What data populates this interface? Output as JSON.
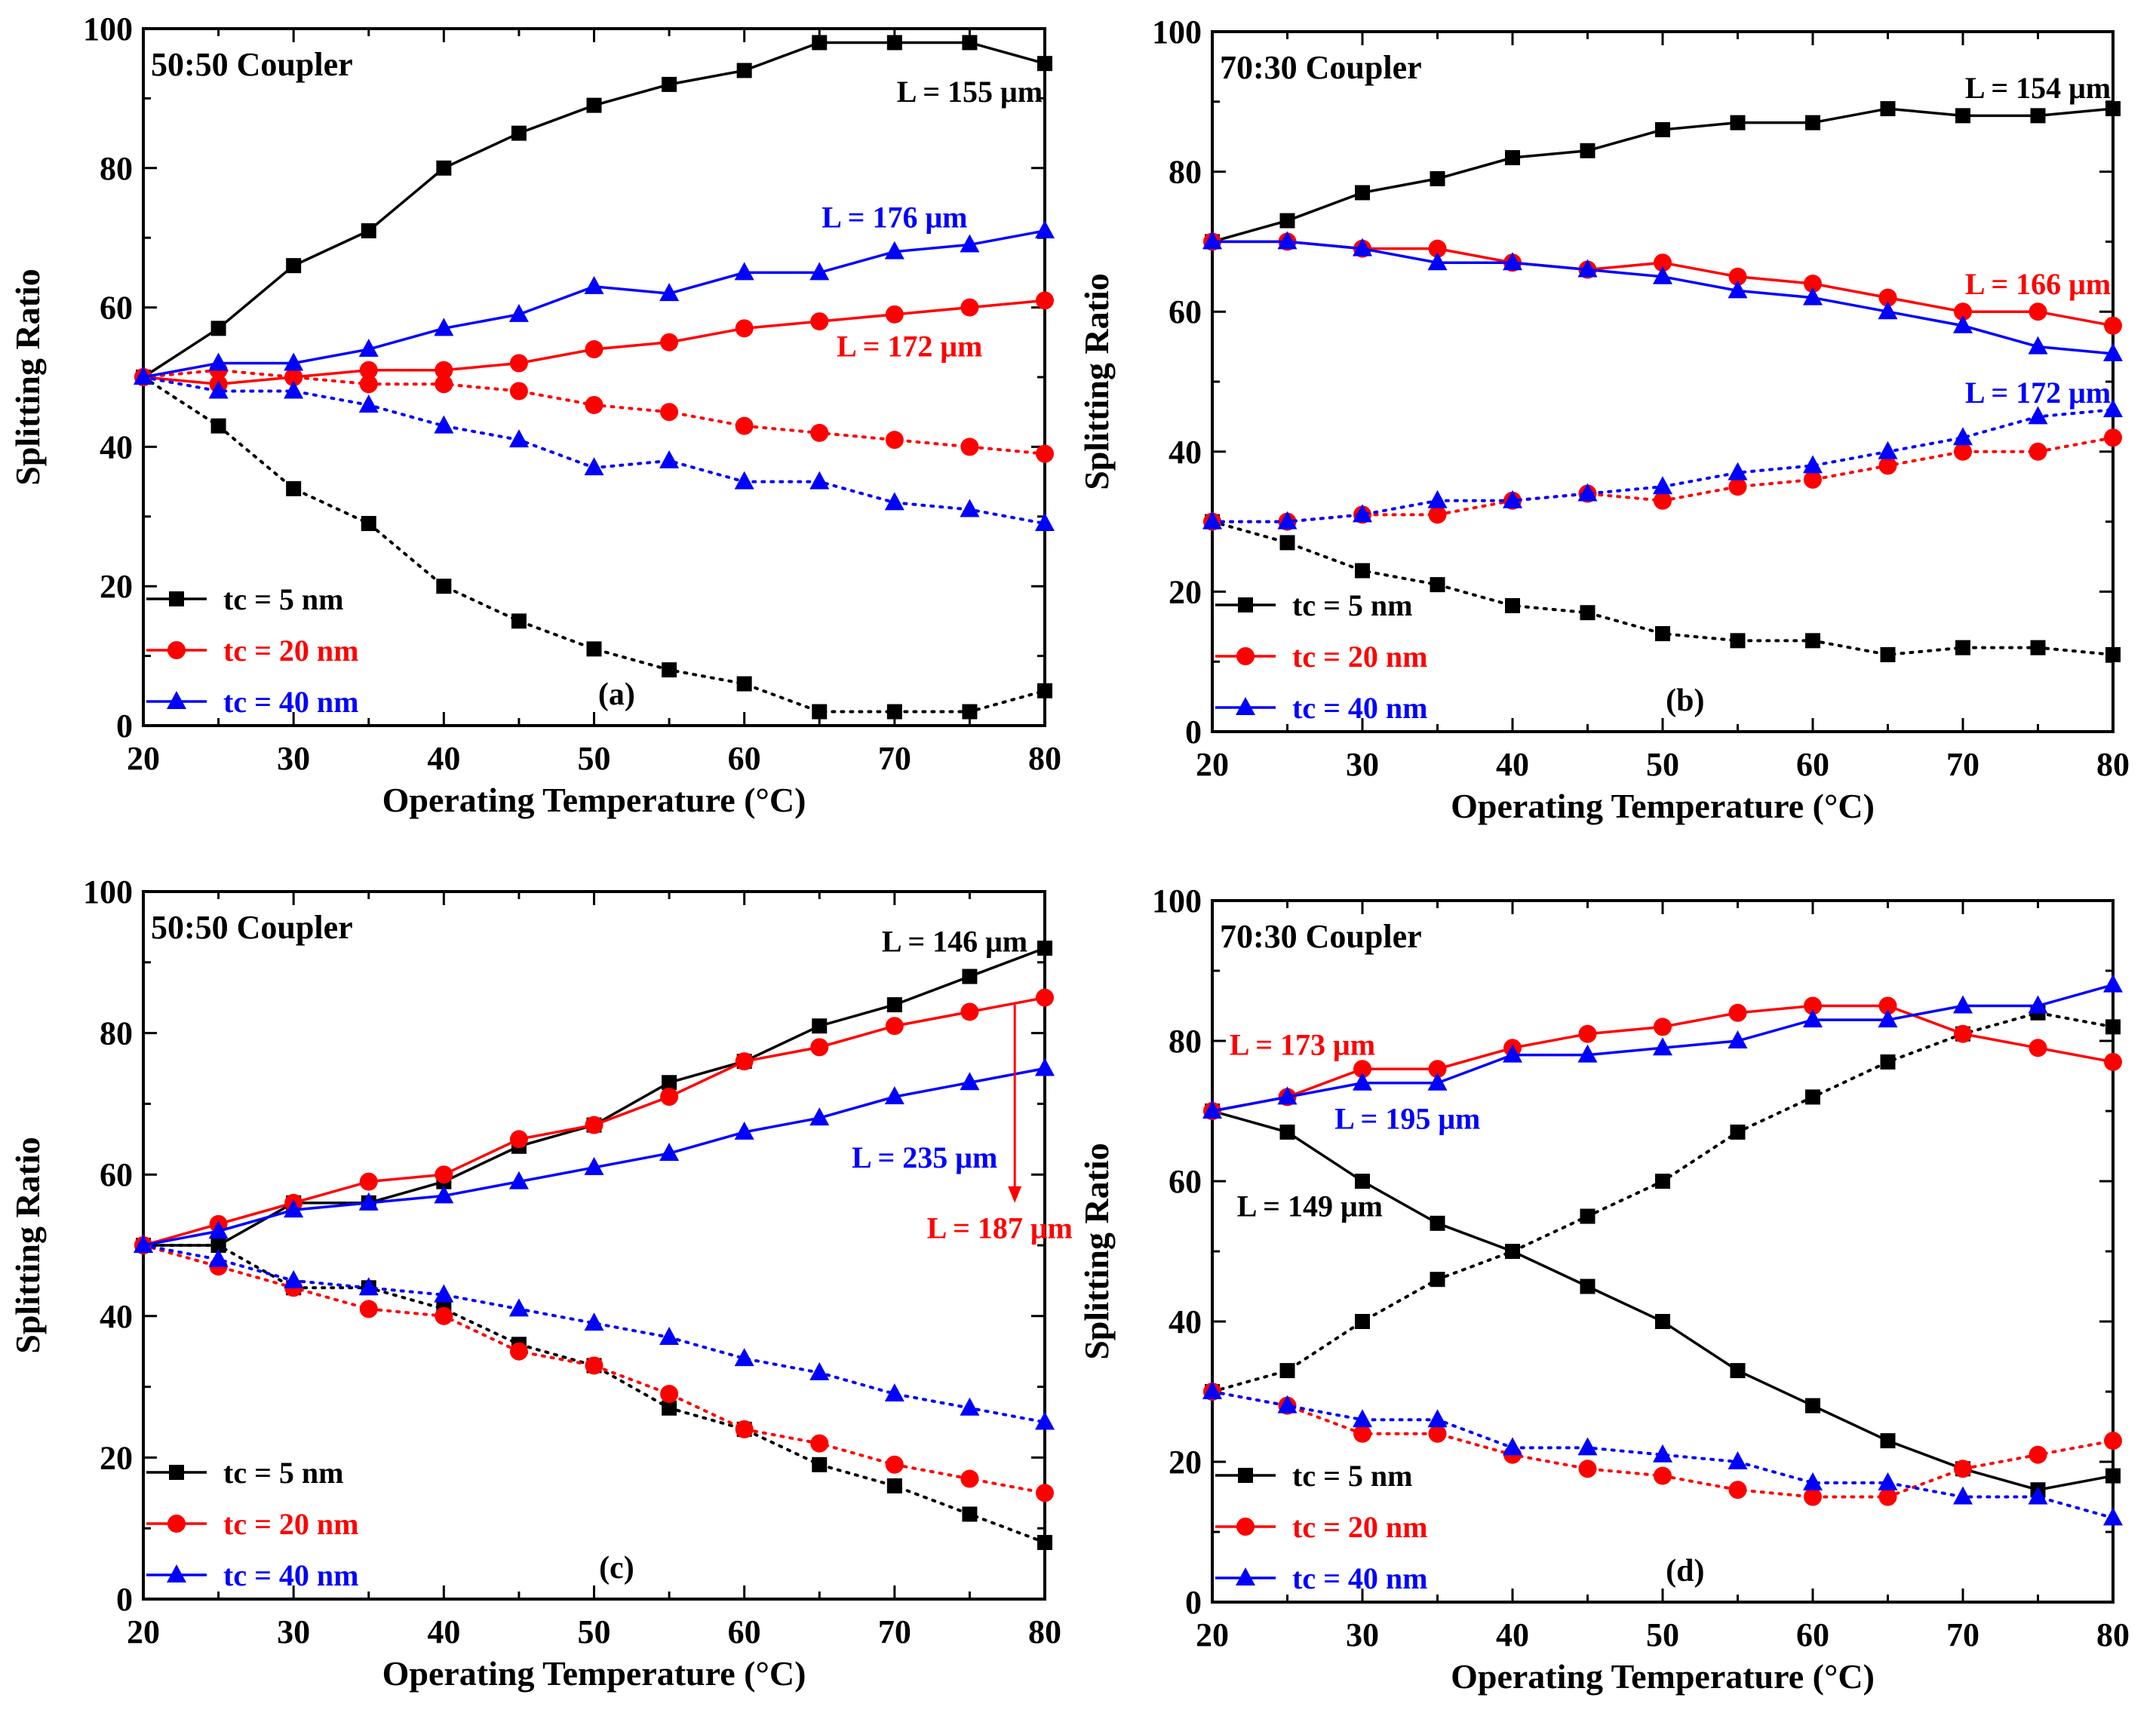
{
  "colors": {
    "black": "#000000",
    "red": "#ff0000",
    "blue": "#0000ff"
  },
  "chart_data": [
    {
      "type": "line",
      "panel_label": "(a)",
      "title": "50:50 Coupler",
      "xlabel": "Operating Temperature (°C)",
      "ylabel": "Splitting Ratio",
      "xlim": [
        20,
        80
      ],
      "ylim": [
        0,
        100
      ],
      "xticks": [
        20,
        30,
        40,
        50,
        60,
        70,
        80
      ],
      "yticks": [
        0,
        20,
        40,
        60,
        80,
        100
      ],
      "x": [
        20,
        25,
        30,
        35,
        40,
        45,
        50,
        55,
        60,
        65,
        70,
        75,
        80
      ],
      "legend": [
        {
          "label": "tc = 5 nm",
          "color": "#000000",
          "marker": "square"
        },
        {
          "label": "tc = 20 nm",
          "color": "#ff0000",
          "marker": "circle"
        },
        {
          "label": "tc = 40 nm",
          "color": "#0000ff",
          "marker": "triangle"
        }
      ],
      "series": [
        {
          "name": "tc = 5 nm (through)",
          "color": "#000000",
          "marker": "square",
          "style": "solid",
          "values": [
            50,
            57,
            66,
            71,
            80,
            85,
            89,
            92,
            94,
            98,
            98,
            98,
            95
          ]
        },
        {
          "name": "tc = 5 nm (cross)",
          "color": "#000000",
          "marker": "square",
          "style": "dotted",
          "values": [
            50,
            43,
            34,
            29,
            20,
            15,
            11,
            8,
            6,
            2,
            2,
            2,
            5
          ]
        },
        {
          "name": "tc = 20 nm (through)",
          "color": "#ff0000",
          "marker": "circle",
          "style": "solid",
          "values": [
            50,
            49,
            50,
            51,
            51,
            52,
            54,
            55,
            57,
            58,
            59,
            60,
            61
          ]
        },
        {
          "name": "tc = 20 nm (cross)",
          "color": "#ff0000",
          "marker": "circle",
          "style": "dotted",
          "values": [
            50,
            51,
            50,
            49,
            49,
            48,
            46,
            45,
            43,
            42,
            41,
            40,
            39
          ]
        },
        {
          "name": "tc = 40 nm (through)",
          "color": "#0000ff",
          "marker": "triangle",
          "style": "solid",
          "values": [
            50,
            52,
            52,
            54,
            57,
            59,
            63,
            62,
            65,
            65,
            68,
            69,
            71
          ]
        },
        {
          "name": "tc = 40 nm (cross)",
          "color": "#0000ff",
          "marker": "triangle",
          "style": "dotted",
          "values": [
            50,
            48,
            48,
            46,
            43,
            41,
            37,
            38,
            35,
            35,
            32,
            31,
            29
          ]
        }
      ],
      "annotations": [
        {
          "text": "L = 155 μm",
          "color": "#000000",
          "x": 75,
          "y": 91
        },
        {
          "text": "L = 176 μm",
          "color": "#0000ff",
          "x": 70,
          "y": 73
        },
        {
          "text": "L = 172 μm",
          "color": "#ff0000",
          "x": 71,
          "y": 54.5
        }
      ]
    },
    {
      "type": "line",
      "panel_label": "(b)",
      "title": "70:30 Coupler",
      "xlabel": "Operating Temperature (°C)",
      "ylabel": "Splitting Ratio",
      "xlim": [
        20,
        80
      ],
      "ylim": [
        0,
        100
      ],
      "xticks": [
        20,
        30,
        40,
        50,
        60,
        70,
        80
      ],
      "yticks": [
        0,
        20,
        40,
        60,
        80,
        100
      ],
      "x": [
        20,
        25,
        30,
        35,
        40,
        45,
        50,
        55,
        60,
        65,
        70,
        75,
        80
      ],
      "legend": [
        {
          "label": "tc = 5 nm",
          "color": "#000000",
          "marker": "square"
        },
        {
          "label": "tc = 20 nm",
          "color": "#ff0000",
          "marker": "circle"
        },
        {
          "label": "tc = 40 nm",
          "color": "#0000ff",
          "marker": "triangle"
        }
      ],
      "series": [
        {
          "name": "tc = 5 nm (through)",
          "color": "#000000",
          "marker": "square",
          "style": "solid",
          "values": [
            70,
            73,
            77,
            79,
            82,
            83,
            86,
            87,
            87,
            89,
            88,
            88,
            89
          ]
        },
        {
          "name": "tc = 5 nm (cross)",
          "color": "#000000",
          "marker": "square",
          "style": "dotted",
          "values": [
            30,
            27,
            23,
            21,
            18,
            17,
            14,
            13,
            13,
            11,
            12,
            12,
            11
          ]
        },
        {
          "name": "tc = 20 nm (through)",
          "color": "#ff0000",
          "marker": "circle",
          "style": "solid",
          "values": [
            70,
            70,
            69,
            69,
            67,
            66,
            67,
            65,
            64,
            62,
            60,
            60,
            58
          ]
        },
        {
          "name": "tc = 20 nm (cross)",
          "color": "#ff0000",
          "marker": "circle",
          "style": "dotted",
          "values": [
            30,
            30,
            31,
            31,
            33,
            34,
            33,
            35,
            36,
            38,
            40,
            40,
            42
          ]
        },
        {
          "name": "tc = 40 nm (through)",
          "color": "#0000ff",
          "marker": "triangle",
          "style": "solid",
          "values": [
            70,
            70,
            69,
            67,
            67,
            66,
            65,
            63,
            62,
            60,
            58,
            55,
            54
          ]
        },
        {
          "name": "tc = 40 nm (cross)",
          "color": "#0000ff",
          "marker": "triangle",
          "style": "dotted",
          "values": [
            30,
            30,
            31,
            33,
            33,
            34,
            35,
            37,
            38,
            40,
            42,
            45,
            46
          ]
        }
      ],
      "annotations": [
        {
          "text": "L = 154 μm",
          "color": "#000000",
          "x": 75,
          "y": 92
        },
        {
          "text": "L = 166 μm",
          "color": "#ff0000",
          "x": 75,
          "y": 64
        },
        {
          "text": "L = 172 μm",
          "color": "#0000ff",
          "x": 75,
          "y": 48.5
        }
      ]
    },
    {
      "type": "line",
      "panel_label": "(c)",
      "title": "50:50 Coupler",
      "xlabel": "Operating Temperature (°C)",
      "ylabel": "Splitting Ratio",
      "xlim": [
        20,
        80
      ],
      "ylim": [
        0,
        100
      ],
      "xticks": [
        20,
        30,
        40,
        50,
        60,
        70,
        80
      ],
      "yticks": [
        0,
        20,
        40,
        60,
        80,
        100
      ],
      "x": [
        20,
        25,
        30,
        35,
        40,
        45,
        50,
        55,
        60,
        65,
        70,
        75,
        80
      ],
      "legend": [
        {
          "label": "tc = 5 nm",
          "color": "#000000",
          "marker": "square"
        },
        {
          "label": "tc = 20 nm",
          "color": "#ff0000",
          "marker": "circle"
        },
        {
          "label": "tc = 40 nm",
          "color": "#0000ff",
          "marker": "triangle"
        }
      ],
      "series": [
        {
          "name": "tc = 5 nm (through)",
          "color": "#000000",
          "marker": "square",
          "style": "solid",
          "values": [
            50,
            50,
            56,
            56,
            59,
            64,
            67,
            73,
            76,
            81,
            84,
            88,
            92
          ]
        },
        {
          "name": "tc = 5 nm (cross)",
          "color": "#000000",
          "marker": "square",
          "style": "dotted",
          "values": [
            50,
            50,
            44,
            44,
            41,
            36,
            33,
            27,
            24,
            19,
            16,
            12,
            8
          ]
        },
        {
          "name": "tc = 20 nm (through)",
          "color": "#ff0000",
          "marker": "circle",
          "style": "solid",
          "values": [
            50,
            53,
            56,
            59,
            60,
            65,
            67,
            71,
            76,
            78,
            81,
            83,
            85
          ]
        },
        {
          "name": "tc = 20 nm (cross)",
          "color": "#ff0000",
          "marker": "circle",
          "style": "dotted",
          "values": [
            50,
            47,
            44,
            41,
            40,
            35,
            33,
            29,
            24,
            22,
            19,
            17,
            15
          ]
        },
        {
          "name": "tc = 40 nm (through)",
          "color": "#0000ff",
          "marker": "triangle",
          "style": "solid",
          "values": [
            50,
            52,
            55,
            56,
            57,
            59,
            61,
            63,
            66,
            68,
            71,
            73,
            75
          ]
        },
        {
          "name": "tc = 40 nm (cross)",
          "color": "#0000ff",
          "marker": "triangle",
          "style": "dotted",
          "values": [
            50,
            48,
            45,
            44,
            43,
            41,
            39,
            37,
            34,
            32,
            29,
            27,
            25
          ]
        }
      ],
      "annotations": [
        {
          "text": "L = 146 μm",
          "color": "#000000",
          "x": 74,
          "y": 93
        },
        {
          "text": "L = 235 μm",
          "color": "#0000ff",
          "x": 72,
          "y": 62.5
        },
        {
          "text": "L = 187 μm",
          "color": "#ff0000",
          "x": 77,
          "y": 52.5
        }
      ],
      "arrow": {
        "color": "#ff0000",
        "x": 78,
        "y_from": 84,
        "y_to": 56
      }
    },
    {
      "type": "line",
      "panel_label": "(d)",
      "title": "70:30 Coupler",
      "xlabel": "Operating Temperature (°C)",
      "ylabel": "Splitting Ratio",
      "xlim": [
        20,
        80
      ],
      "ylim": [
        0,
        100
      ],
      "xticks": [
        20,
        30,
        40,
        50,
        60,
        70,
        80
      ],
      "yticks": [
        0,
        20,
        40,
        60,
        80,
        100
      ],
      "x": [
        20,
        25,
        30,
        35,
        40,
        45,
        50,
        55,
        60,
        65,
        70,
        75,
        80
      ],
      "legend": [
        {
          "label": "tc = 5 nm",
          "color": "#000000",
          "marker": "square"
        },
        {
          "label": "tc = 20 nm",
          "color": "#ff0000",
          "marker": "circle"
        },
        {
          "label": "tc = 40 nm",
          "color": "#0000ff",
          "marker": "triangle"
        }
      ],
      "series": [
        {
          "name": "tc = 5 nm (through)",
          "color": "#000000",
          "marker": "square",
          "style": "solid",
          "values": [
            70,
            67,
            60,
            54,
            50,
            45,
            40,
            33,
            28,
            23,
            19,
            16,
            18
          ]
        },
        {
          "name": "tc = 5 nm (cross)",
          "color": "#000000",
          "marker": "square",
          "style": "dotted",
          "values": [
            30,
            33,
            40,
            46,
            50,
            55,
            60,
            67,
            72,
            77,
            81,
            84,
            82
          ]
        },
        {
          "name": "tc = 20 nm (through)",
          "color": "#ff0000",
          "marker": "circle",
          "style": "solid",
          "values": [
            70,
            72,
            76,
            76,
            79,
            81,
            82,
            84,
            85,
            85,
            81,
            79,
            77
          ]
        },
        {
          "name": "tc = 20 nm (cross)",
          "color": "#ff0000",
          "marker": "circle",
          "style": "dotted",
          "values": [
            30,
            28,
            24,
            24,
            21,
            19,
            18,
            16,
            15,
            15,
            19,
            21,
            23
          ]
        },
        {
          "name": "tc = 40 nm (through)",
          "color": "#0000ff",
          "marker": "triangle",
          "style": "solid",
          "values": [
            70,
            72,
            74,
            74,
            78,
            78,
            79,
            80,
            83,
            83,
            85,
            85,
            88
          ]
        },
        {
          "name": "tc = 40 nm (cross)",
          "color": "#0000ff",
          "marker": "triangle",
          "style": "dotted",
          "values": [
            30,
            28,
            26,
            26,
            22,
            22,
            21,
            20,
            17,
            17,
            15,
            15,
            12
          ]
        }
      ],
      "annotations": [
        {
          "text": "L = 173 μm",
          "color": "#ff0000",
          "x": 26,
          "y": 79.5
        },
        {
          "text": "L = 195 μm",
          "color": "#0000ff",
          "x": 33,
          "y": 69
        },
        {
          "text": "L = 149 μm",
          "color": "#000000",
          "x": 26.5,
          "y": 56.5
        }
      ]
    }
  ]
}
